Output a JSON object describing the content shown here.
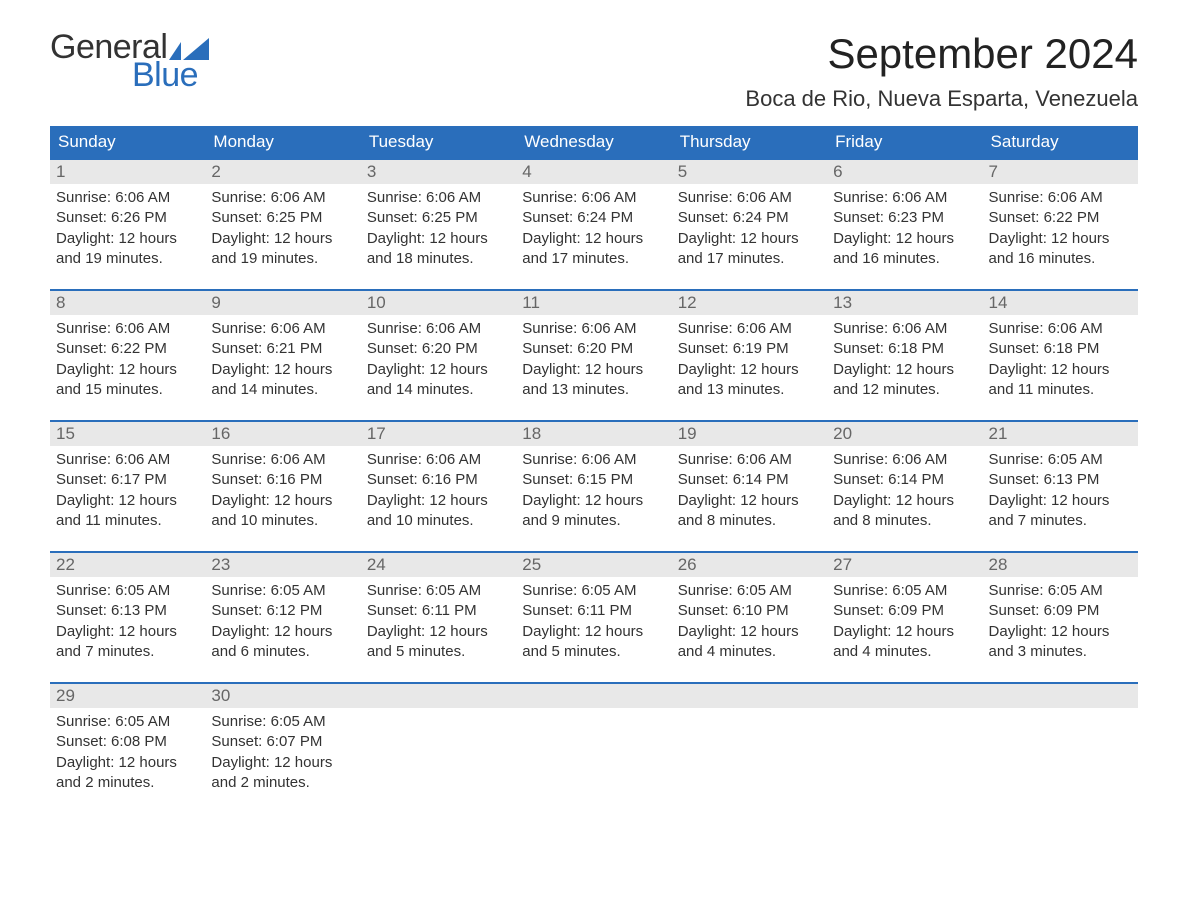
{
  "logo": {
    "text1": "General",
    "text2": "Blue",
    "flag_color": "#2a6ebb"
  },
  "title": "September 2024",
  "location": "Boca de Rio, Nueva Esparta, Venezuela",
  "colors": {
    "header_bg": "#2a6ebb",
    "header_text": "#ffffff",
    "daynum_bg": "#e8e8e8",
    "daynum_border": "#2a6ebb",
    "daynum_text": "#666666",
    "body_text": "#333333"
  },
  "typography": {
    "title_fontsize": 42,
    "location_fontsize": 22,
    "dow_fontsize": 17,
    "daynum_fontsize": 17,
    "info_fontsize": 15
  },
  "dow": [
    "Sunday",
    "Monday",
    "Tuesday",
    "Wednesday",
    "Thursday",
    "Friday",
    "Saturday"
  ],
  "days": [
    {
      "n": "1",
      "sunrise": "6:06 AM",
      "sunset": "6:26 PM",
      "daylight": "12 hours and 19 minutes."
    },
    {
      "n": "2",
      "sunrise": "6:06 AM",
      "sunset": "6:25 PM",
      "daylight": "12 hours and 19 minutes."
    },
    {
      "n": "3",
      "sunrise": "6:06 AM",
      "sunset": "6:25 PM",
      "daylight": "12 hours and 18 minutes."
    },
    {
      "n": "4",
      "sunrise": "6:06 AM",
      "sunset": "6:24 PM",
      "daylight": "12 hours and 17 minutes."
    },
    {
      "n": "5",
      "sunrise": "6:06 AM",
      "sunset": "6:24 PM",
      "daylight": "12 hours and 17 minutes."
    },
    {
      "n": "6",
      "sunrise": "6:06 AM",
      "sunset": "6:23 PM",
      "daylight": "12 hours and 16 minutes."
    },
    {
      "n": "7",
      "sunrise": "6:06 AM",
      "sunset": "6:22 PM",
      "daylight": "12 hours and 16 minutes."
    },
    {
      "n": "8",
      "sunrise": "6:06 AM",
      "sunset": "6:22 PM",
      "daylight": "12 hours and 15 minutes."
    },
    {
      "n": "9",
      "sunrise": "6:06 AM",
      "sunset": "6:21 PM",
      "daylight": "12 hours and 14 minutes."
    },
    {
      "n": "10",
      "sunrise": "6:06 AM",
      "sunset": "6:20 PM",
      "daylight": "12 hours and 14 minutes."
    },
    {
      "n": "11",
      "sunrise": "6:06 AM",
      "sunset": "6:20 PM",
      "daylight": "12 hours and 13 minutes."
    },
    {
      "n": "12",
      "sunrise": "6:06 AM",
      "sunset": "6:19 PM",
      "daylight": "12 hours and 13 minutes."
    },
    {
      "n": "13",
      "sunrise": "6:06 AM",
      "sunset": "6:18 PM",
      "daylight": "12 hours and 12 minutes."
    },
    {
      "n": "14",
      "sunrise": "6:06 AM",
      "sunset": "6:18 PM",
      "daylight": "12 hours and 11 minutes."
    },
    {
      "n": "15",
      "sunrise": "6:06 AM",
      "sunset": "6:17 PM",
      "daylight": "12 hours and 11 minutes."
    },
    {
      "n": "16",
      "sunrise": "6:06 AM",
      "sunset": "6:16 PM",
      "daylight": "12 hours and 10 minutes."
    },
    {
      "n": "17",
      "sunrise": "6:06 AM",
      "sunset": "6:16 PM",
      "daylight": "12 hours and 10 minutes."
    },
    {
      "n": "18",
      "sunrise": "6:06 AM",
      "sunset": "6:15 PM",
      "daylight": "12 hours and 9 minutes."
    },
    {
      "n": "19",
      "sunrise": "6:06 AM",
      "sunset": "6:14 PM",
      "daylight": "12 hours and 8 minutes."
    },
    {
      "n": "20",
      "sunrise": "6:06 AM",
      "sunset": "6:14 PM",
      "daylight": "12 hours and 8 minutes."
    },
    {
      "n": "21",
      "sunrise": "6:05 AM",
      "sunset": "6:13 PM",
      "daylight": "12 hours and 7 minutes."
    },
    {
      "n": "22",
      "sunrise": "6:05 AM",
      "sunset": "6:13 PM",
      "daylight": "12 hours and 7 minutes."
    },
    {
      "n": "23",
      "sunrise": "6:05 AM",
      "sunset": "6:12 PM",
      "daylight": "12 hours and 6 minutes."
    },
    {
      "n": "24",
      "sunrise": "6:05 AM",
      "sunset": "6:11 PM",
      "daylight": "12 hours and 5 minutes."
    },
    {
      "n": "25",
      "sunrise": "6:05 AM",
      "sunset": "6:11 PM",
      "daylight": "12 hours and 5 minutes."
    },
    {
      "n": "26",
      "sunrise": "6:05 AM",
      "sunset": "6:10 PM",
      "daylight": "12 hours and 4 minutes."
    },
    {
      "n": "27",
      "sunrise": "6:05 AM",
      "sunset": "6:09 PM",
      "daylight": "12 hours and 4 minutes."
    },
    {
      "n": "28",
      "sunrise": "6:05 AM",
      "sunset": "6:09 PM",
      "daylight": "12 hours and 3 minutes."
    },
    {
      "n": "29",
      "sunrise": "6:05 AM",
      "sunset": "6:08 PM",
      "daylight": "12 hours and 2 minutes."
    },
    {
      "n": "30",
      "sunrise": "6:05 AM",
      "sunset": "6:07 PM",
      "daylight": "12 hours and 2 minutes."
    }
  ],
  "labels": {
    "sunrise_prefix": "Sunrise: ",
    "sunset_prefix": "Sunset: ",
    "daylight_prefix": "Daylight: "
  },
  "layout": {
    "start_weekday": 0,
    "empty_trailing": 5
  }
}
